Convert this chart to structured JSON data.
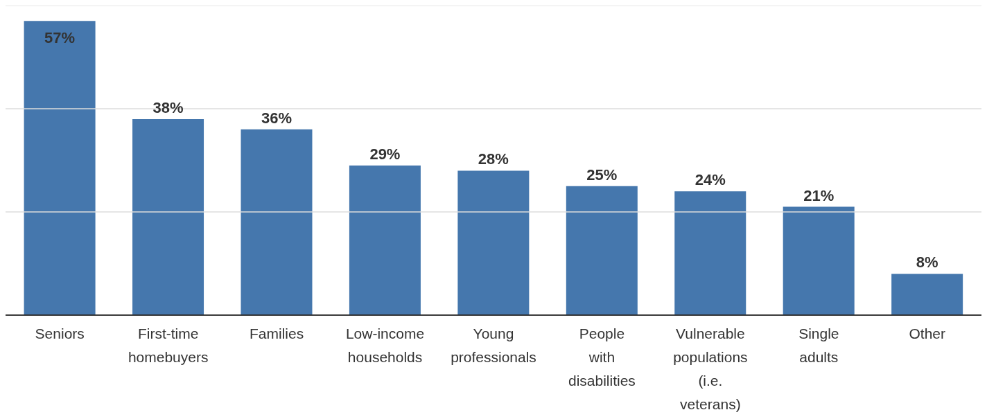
{
  "chart_data": {
    "type": "bar",
    "categories": [
      "Seniors",
      "First-time homebuyers",
      "Families",
      "Low-income households",
      "Young professionals",
      "People with disabilities",
      "Vulnerable populations (i.e. veterans)",
      "Single adults",
      "Other"
    ],
    "values": [
      57,
      38,
      36,
      29,
      28,
      25,
      24,
      21,
      8
    ],
    "value_labels": [
      "57%",
      "38%",
      "36%",
      "29%",
      "28%",
      "25%",
      "24%",
      "21%",
      "8%"
    ],
    "color": "#4577ad",
    "ylim": [
      0,
      60
    ],
    "yticks": [
      {
        "value": 0,
        "label": null
      },
      {
        "value": 20,
        "label": null
      },
      {
        "value": 40,
        "label": null
      },
      {
        "value": 60,
        "label": null
      }
    ],
    "tick_labels": "x",
    "grid": "y"
  }
}
